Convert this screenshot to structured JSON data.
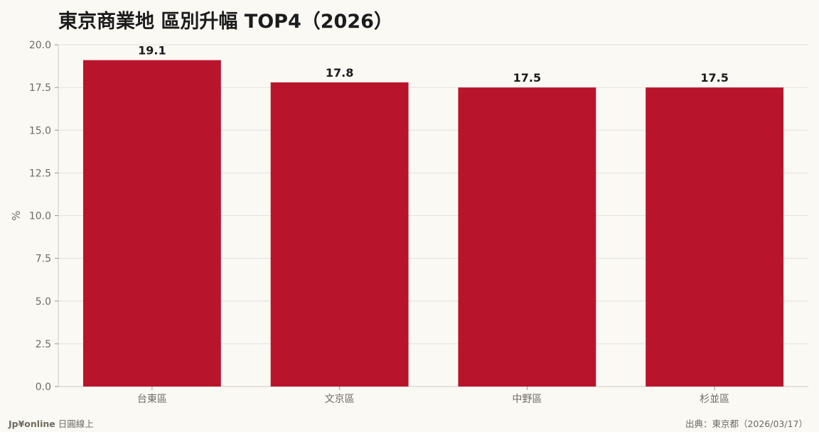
{
  "chart_data": {
    "type": "bar",
    "title": "東京商業地 區別升幅 TOP4（2026）",
    "ylabel": "%",
    "xlabel": "",
    "ylim": [
      0,
      20
    ],
    "yticks": [
      "0.0",
      "2.5",
      "5.0",
      "7.5",
      "10.0",
      "12.5",
      "15.0",
      "17.5",
      "20.0"
    ],
    "categories": [
      "台東區",
      "文京區",
      "中野區",
      "杉並區"
    ],
    "values": [
      19.1,
      17.8,
      17.5,
      17.5
    ],
    "value_labels": [
      "19.1",
      "17.8",
      "17.5",
      "17.5"
    ],
    "bar_color": "#b8152d",
    "grid": true,
    "legend": "none"
  },
  "footer": {
    "brand_name": "Jp¥online",
    "brand_sub": "日圓線上",
    "source": "出典：東京都（2026/03/17）"
  }
}
